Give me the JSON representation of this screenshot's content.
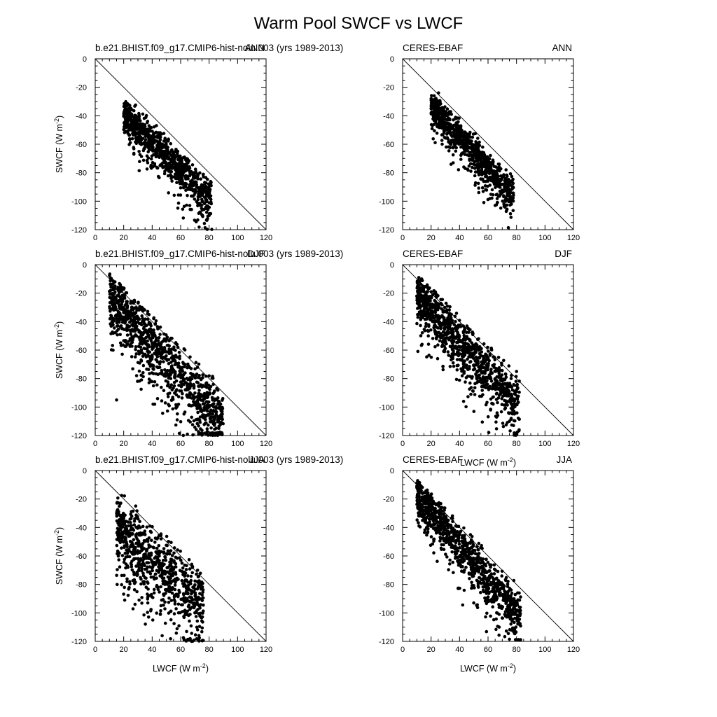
{
  "figure_title": "Warm Pool SWCF vs LWCF",
  "axis_text": {
    "xlabel": "LWCF (W m",
    "ylabel": "SWCF (W m",
    "unit_exponent": "-2",
    "unit_close": ")"
  },
  "chart_data": [
    {
      "type": "scatter",
      "title_left": "b.e21.BHIST.f09_g17.CMIP6-hist-nolu.003 (yrs 1989-2013)",
      "title_right": "ANN",
      "xlim": [
        0,
        120
      ],
      "ylim": [
        -120,
        0
      ],
      "x_ticks": [
        0,
        20,
        40,
        60,
        80,
        100,
        120
      ],
      "y_ticks": [
        0,
        -20,
        -40,
        -60,
        -80,
        -100,
        -120
      ],
      "reference_line": "y = -x",
      "show_xlabel": false,
      "show_ylabel": true,
      "cloud": {
        "x_range": [
          20,
          82
        ],
        "slope": -0.95,
        "intercept": -20,
        "spread": 12,
        "upper_offset": 2,
        "tail_x": 55,
        "tail_drop": 0.55,
        "n": 900
      },
      "sample_points": [
        [
          20,
          -40
        ],
        [
          25,
          -42
        ],
        [
          30,
          -48
        ],
        [
          40,
          -55
        ],
        [
          50,
          -62
        ],
        [
          60,
          -74
        ],
        [
          70,
          -88
        ],
        [
          80,
          -110
        ]
      ]
    },
    {
      "type": "scatter",
      "title_left": "CERES-EBAF",
      "title_right": "ANN",
      "xlim": [
        0,
        120
      ],
      "ylim": [
        -120,
        0
      ],
      "x_ticks": [
        0,
        20,
        40,
        60,
        80,
        100,
        120
      ],
      "y_ticks": [
        0,
        -20,
        -40,
        -60,
        -80,
        -100,
        -120
      ],
      "reference_line": "y = -x",
      "show_xlabel": false,
      "show_ylabel": false,
      "cloud": {
        "x_range": [
          20,
          78
        ],
        "slope": -1.05,
        "intercept": -13,
        "spread": 11,
        "upper_offset": 3,
        "tail_x": 45,
        "tail_drop": 0.45,
        "n": 900
      },
      "sample_points": [
        [
          20,
          -35
        ],
        [
          25,
          -38
        ],
        [
          35,
          -48
        ],
        [
          45,
          -58
        ],
        [
          55,
          -70
        ],
        [
          65,
          -85
        ],
        [
          65,
          -103
        ]
      ]
    },
    {
      "type": "scatter",
      "title_left": "b.e21.BHIST.f09_g17.CMIP6-hist-nolu.003 (yrs 1989-2013)",
      "title_right": "DJF",
      "xlim": [
        0,
        120
      ],
      "ylim": [
        -120,
        0
      ],
      "x_ticks": [
        0,
        20,
        40,
        60,
        80,
        100,
        120
      ],
      "y_ticks": [
        0,
        -20,
        -40,
        -60,
        -80,
        -100,
        -120
      ],
      "reference_line": "y = -x",
      "show_xlabel": false,
      "show_ylabel": true,
      "cloud": {
        "x_range": [
          10,
          90
        ],
        "slope": -1.05,
        "intercept": -11,
        "spread": 18,
        "upper_offset": 4,
        "tail_x": 25,
        "tail_drop": 0.75,
        "n": 1100
      },
      "sample_points": [
        [
          12,
          -28
        ],
        [
          15,
          -26
        ],
        [
          25,
          -36
        ],
        [
          40,
          -55
        ],
        [
          60,
          -75
        ],
        [
          80,
          -100
        ],
        [
          88,
          -118
        ],
        [
          15,
          -95
        ]
      ]
    },
    {
      "type": "scatter",
      "title_left": "CERES-EBAF",
      "title_right": "DJF",
      "xlim": [
        0,
        120
      ],
      "ylim": [
        -120,
        0
      ],
      "x_ticks": [
        0,
        20,
        40,
        60,
        80,
        100,
        120
      ],
      "y_ticks": [
        0,
        -20,
        -40,
        -60,
        -80,
        -100,
        -120
      ],
      "reference_line": "y = -x",
      "show_xlabel": true,
      "show_ylabel": false,
      "cloud": {
        "x_range": [
          10,
          82
        ],
        "slope": -1.05,
        "intercept": -11,
        "spread": 16,
        "upper_offset": 4,
        "tail_x": 40,
        "tail_drop": 0.55,
        "n": 1000
      },
      "sample_points": [
        [
          10,
          -22
        ],
        [
          20,
          -30
        ],
        [
          35,
          -45
        ],
        [
          50,
          -62
        ],
        [
          65,
          -80
        ],
        [
          75,
          -110
        ],
        [
          80,
          -75
        ]
      ]
    },
    {
      "type": "scatter",
      "title_left": "b.e21.BHIST.f09_g17.CMIP6-hist-nolu.003 (yrs 1989-2013)",
      "title_right": "JJA",
      "xlim": [
        0,
        120
      ],
      "ylim": [
        -120,
        0
      ],
      "x_ticks": [
        0,
        20,
        40,
        60,
        80,
        100,
        120
      ],
      "y_ticks": [
        0,
        -20,
        -40,
        -60,
        -80,
        -100,
        -120
      ],
      "reference_line": "y = -x",
      "show_xlabel": true,
      "show_ylabel": true,
      "cloud": {
        "x_range": [
          15,
          76
        ],
        "slope": -0.9,
        "intercept": -24,
        "spread": 20,
        "upper_offset": 4,
        "tail_x": 20,
        "tail_drop": 0.6,
        "n": 800
      },
      "sample_points": [
        [
          15,
          -30
        ],
        [
          20,
          -35
        ],
        [
          35,
          -45
        ],
        [
          45,
          -60
        ],
        [
          55,
          -72
        ],
        [
          65,
          -82
        ],
        [
          47,
          -116
        ],
        [
          70,
          -100
        ]
      ]
    },
    {
      "type": "scatter",
      "title_left": "CERES-EBAF",
      "title_right": "JJA",
      "xlim": [
        0,
        120
      ],
      "ylim": [
        -120,
        0
      ],
      "x_ticks": [
        0,
        20,
        40,
        60,
        80,
        100,
        120
      ],
      "y_ticks": [
        0,
        -20,
        -40,
        -60,
        -80,
        -100,
        -120
      ],
      "reference_line": "y = -x",
      "show_xlabel": true,
      "show_ylabel": false,
      "cloud": {
        "x_range": [
          10,
          83
        ],
        "slope": -1.15,
        "intercept": -6,
        "spread": 14,
        "upper_offset": 4,
        "tail_x": 35,
        "tail_drop": 0.5,
        "n": 1000
      },
      "sample_points": [
        [
          10,
          -12
        ],
        [
          20,
          -28
        ],
        [
          35,
          -48
        ],
        [
          45,
          -55
        ],
        [
          55,
          -68
        ],
        [
          65,
          -85
        ],
        [
          75,
          -100
        ],
        [
          82,
          -108
        ]
      ]
    }
  ]
}
